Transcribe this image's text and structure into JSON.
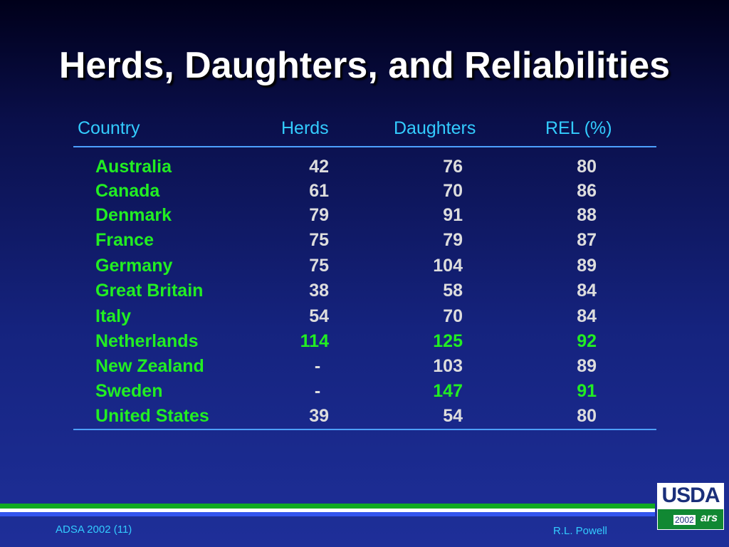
{
  "title": "Herds, Daughters, and Reliabilities",
  "headers": {
    "country": "Country",
    "herds": "Herds",
    "daughters": "Daughters",
    "rel": "REL (%)"
  },
  "rows": [
    {
      "country": "Australia",
      "herds": "42",
      "daughters": "76",
      "rel": "80"
    },
    {
      "country": "Canada",
      "herds": "61",
      "daughters": "70",
      "rel": "86"
    },
    {
      "country": "Denmark",
      "herds": "79",
      "daughters": "91",
      "rel": "88"
    },
    {
      "country": "France",
      "herds": "75",
      "daughters": "79",
      "rel": "87"
    },
    {
      "country": "Germany",
      "herds": "75",
      "daughters": "104",
      "rel": "89"
    },
    {
      "country": "Great Britain",
      "herds": "38",
      "daughters": "58",
      "rel": "84"
    },
    {
      "country": "Italy",
      "herds": "54",
      "daughters": "70",
      "rel": "84"
    },
    {
      "country": "Netherlands",
      "herds": "114",
      "daughters": "125",
      "rel": "92"
    },
    {
      "country": "New Zealand",
      "herds": "-",
      "daughters": "103",
      "rel": "89"
    },
    {
      "country": "Sweden",
      "herds": "-",
      "daughters": "147",
      "rel": "91"
    },
    {
      "country": "United States",
      "herds": "39",
      "daughters": "54",
      "rel": "80"
    }
  ],
  "highlights": {
    "Netherlands": [
      "herds",
      "daughters",
      "rel"
    ],
    "Sweden": [
      "daughters",
      "rel"
    ]
  },
  "footer": {
    "left": "ADSA 2002 (11)",
    "right": "R.L. Powell"
  },
  "logo": {
    "text": "USDA",
    "year": "2002",
    "mark": "ars"
  },
  "colors": {
    "header": "#33ccff",
    "country": "#22ee22",
    "value": "#dddddd",
    "highlight": "#22ee22"
  }
}
